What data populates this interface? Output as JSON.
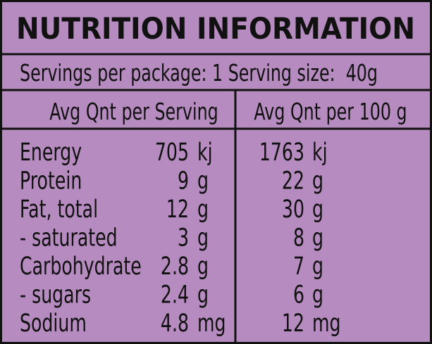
{
  "title": "NUTRITION INFORMATION",
  "servings": "Servings per package: 1 Serving size:  40g",
  "headers": [
    "Avg Qnt per Serving",
    "Avg Qnt per 100 g"
  ],
  "rows": [
    {
      "name": "Energy",
      "per_serving": "705",
      "serving_unit": "kj",
      "per_100g": "1763",
      "per_100g_unit": "kj"
    },
    {
      "name": "Protein",
      "per_serving": "9",
      "serving_unit": "g",
      "per_100g": "22",
      "per_100g_unit": "g"
    },
    {
      "name": "Fat, total",
      "per_serving": "12",
      "serving_unit": "g",
      "per_100g": "30",
      "per_100g_unit": "g"
    },
    {
      "name": "- saturated",
      "per_serving": "3",
      "serving_unit": "g",
      "per_100g": "8",
      "per_100g_unit": "g"
    },
    {
      "name": "Carbohydrate",
      "per_serving": "2.8",
      "serving_unit": "g",
      "per_100g": "7",
      "per_100g_unit": "g"
    },
    {
      "name": "- sugars",
      "per_serving": "2.4",
      "serving_unit": "g",
      "per_100g": "6",
      "per_100g_unit": "g"
    },
    {
      "name": "Sodium",
      "per_serving": "4.8",
      "serving_unit": "mg",
      "per_100g": "12",
      "per_100g_unit": "mg"
    }
  ]
}
